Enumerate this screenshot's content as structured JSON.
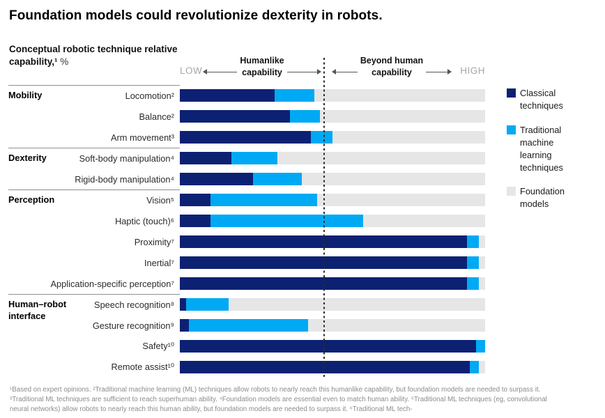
{
  "title": "Foundation models could revolutionize dexterity in robots.",
  "subtitle": {
    "bold": "Conceptual robotic technique relative capability,¹",
    "unit": "%"
  },
  "axis": {
    "low": "LOW",
    "high": "HIGH",
    "left_zone_line1": "Humanlike",
    "left_zone_line2": "capability",
    "right_zone_line1": "Beyond human",
    "right_zone_line2": "capability"
  },
  "colors": {
    "classical": "#0d2173",
    "traditional_ml": "#00a9f4",
    "foundation": "#e6e6e6"
  },
  "legend": [
    {
      "label": "Classical techniques",
      "color": "#0d2173"
    },
    {
      "label": "Traditional machine learning techniques",
      "color": "#00a9f4"
    },
    {
      "label": "Foundation models",
      "color": "#e6e6e6"
    }
  ],
  "chart_data": {
    "type": "bar",
    "orientation": "horizontal-stacked",
    "unit": "%",
    "xlim": [
      0,
      100
    ],
    "humanlike_boundary_pct": 47,
    "series_names": [
      "Classical techniques",
      "Traditional machine learning techniques",
      "Foundation models"
    ],
    "rows": [
      {
        "group": "Mobility",
        "label": "Locomotion²",
        "classical": 31,
        "traditional_ml": 13,
        "foundation": 56
      },
      {
        "group": null,
        "label": "Balance²",
        "classical": 36,
        "traditional_ml": 10,
        "foundation": 54
      },
      {
        "group": null,
        "label": "Arm movement³",
        "classical": 43,
        "traditional_ml": 7,
        "foundation": 50
      },
      {
        "group": "Dexterity",
        "label": "Soft-body manipulation⁴",
        "classical": 17,
        "traditional_ml": 15,
        "foundation": 68
      },
      {
        "group": null,
        "label": "Rigid-body manipulation⁴",
        "classical": 24,
        "traditional_ml": 16,
        "foundation": 60
      },
      {
        "group": "Perception",
        "label": "Vision⁵",
        "classical": 10,
        "traditional_ml": 35,
        "foundation": 55
      },
      {
        "group": null,
        "label": "Haptic (touch)⁶",
        "classical": 10,
        "traditional_ml": 50,
        "foundation": 40
      },
      {
        "group": null,
        "label": "Proximity⁷",
        "classical": 94,
        "traditional_ml": 4,
        "foundation": 2
      },
      {
        "group": null,
        "label": "Inertial⁷",
        "classical": 94,
        "traditional_ml": 4,
        "foundation": 2
      },
      {
        "group": null,
        "label": "Application-specific perception⁷",
        "classical": 94,
        "traditional_ml": 4,
        "foundation": 2
      },
      {
        "group": "Human–robot interface",
        "label": "Speech recognition⁸",
        "classical": 2,
        "traditional_ml": 14,
        "foundation": 84
      },
      {
        "group": null,
        "label": "Gesture recognition⁹",
        "classical": 3,
        "traditional_ml": 39,
        "foundation": 58
      },
      {
        "group": null,
        "label": "Safety¹⁰",
        "classical": 97,
        "traditional_ml": 3,
        "foundation": 0
      },
      {
        "group": null,
        "label": "Remote assist¹⁰",
        "classical": 95,
        "traditional_ml": 3,
        "foundation": 2
      }
    ]
  },
  "footnote": "¹Based on expert opinions. ²Traditional machine learning (ML) techniques allow robots to nearly reach this humanlike capability, but foundation models are needed to surpass it. ³Traditional ML techniques are sufficient to reach superhuman ability. ⁴Foundation models are essential even to match human ability. ⁵Traditional ML techniques (eg, convolutional neural networks) allow robots to nearly reach this human ability, but foundation models are needed to surpass it. ⁶Traditional ML tech-"
}
